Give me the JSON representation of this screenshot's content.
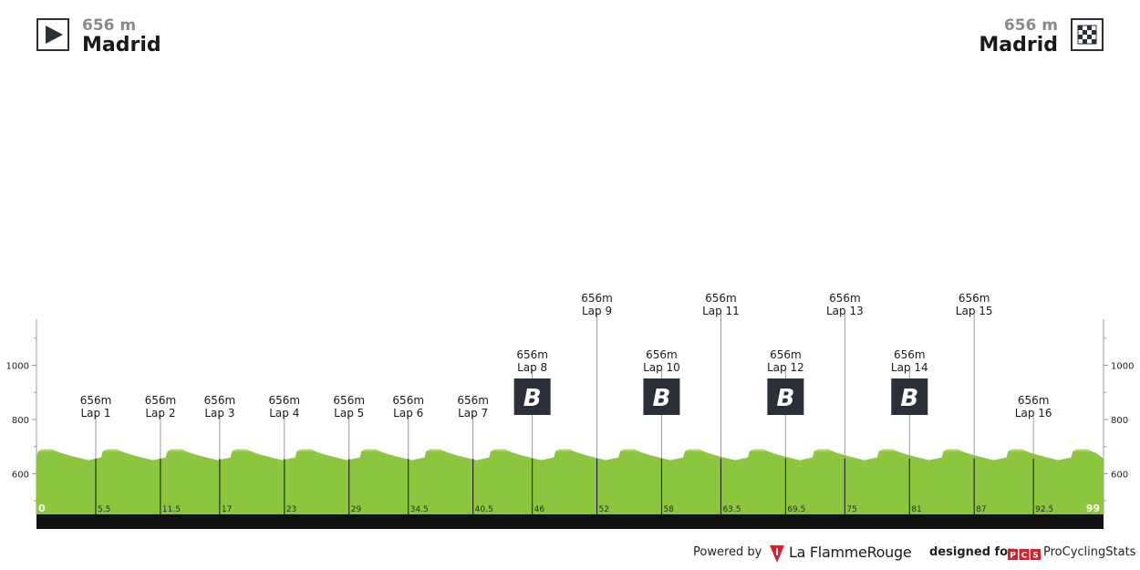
{
  "start": {
    "elevation": "656 m",
    "city": "Madrid",
    "icon": "play-start-icon"
  },
  "finish": {
    "elevation": "656 m",
    "city": "Madrid",
    "icon": "checkered-finish-icon"
  },
  "chart_data": {
    "type": "area",
    "x_unit": "km",
    "y_unit": "m",
    "xlim": [
      0,
      99
    ],
    "ylim": [
      450,
      1170
    ],
    "y_ticks": [
      600,
      800,
      1000
    ],
    "km_markers": [
      {
        "km": 0,
        "label": "0"
      },
      {
        "km": 5.5,
        "label": "5.5"
      },
      {
        "km": 11.5,
        "label": "11.5"
      },
      {
        "km": 17,
        "label": "17"
      },
      {
        "km": 23,
        "label": "23"
      },
      {
        "km": 29,
        "label": "29"
      },
      {
        "km": 34.5,
        "label": "34.5"
      },
      {
        "km": 40.5,
        "label": "40.5"
      },
      {
        "km": 46,
        "label": "46"
      },
      {
        "km": 52,
        "label": "52"
      },
      {
        "km": 58,
        "label": "58"
      },
      {
        "km": 63.5,
        "label": "63.5"
      },
      {
        "km": 69.5,
        "label": "69.5"
      },
      {
        "km": 75,
        "label": "75"
      },
      {
        "km": 81,
        "label": "81"
      },
      {
        "km": 87,
        "label": "87"
      },
      {
        "km": 92.5,
        "label": "92.5"
      },
      {
        "km": 99,
        "label": "99"
      }
    ],
    "elevation_profile_per_lap": {
      "lap_length_km": 6,
      "points": [
        {
          "d": 0,
          "y": 660
        },
        {
          "d": 0.15,
          "y": 683
        },
        {
          "d": 0.5,
          "y": 690
        },
        {
          "d": 1.5,
          "y": 690
        },
        {
          "d": 1.85,
          "y": 683
        },
        {
          "d": 2.3,
          "y": 676
        },
        {
          "d": 3.0,
          "y": 668
        },
        {
          "d": 4.0,
          "y": 658
        },
        {
          "d": 4.8,
          "y": 650
        },
        {
          "d": 5.5,
          "y": 656
        }
      ]
    },
    "laps": [
      {
        "km": 5.5,
        "elevation": "656m",
        "label": "Lap 1",
        "bonus": false,
        "tier": "low"
      },
      {
        "km": 11.5,
        "elevation": "656m",
        "label": "Lap 2",
        "bonus": false,
        "tier": "low"
      },
      {
        "km": 17,
        "elevation": "656m",
        "label": "Lap 3",
        "bonus": false,
        "tier": "low"
      },
      {
        "km": 23,
        "elevation": "656m",
        "label": "Lap 4",
        "bonus": false,
        "tier": "low"
      },
      {
        "km": 29,
        "elevation": "656m",
        "label": "Lap 5",
        "bonus": false,
        "tier": "low"
      },
      {
        "km": 34.5,
        "elevation": "656m",
        "label": "Lap 6",
        "bonus": false,
        "tier": "low"
      },
      {
        "km": 40.5,
        "elevation": "656m",
        "label": "Lap 7",
        "bonus": false,
        "tier": "low"
      },
      {
        "km": 46,
        "elevation": "656m",
        "label": "Lap 8",
        "bonus": true,
        "tier": "mid"
      },
      {
        "km": 52,
        "elevation": "656m",
        "label": "Lap 9",
        "bonus": false,
        "tier": "high"
      },
      {
        "km": 58,
        "elevation": "656m",
        "label": "Lap 10",
        "bonus": true,
        "tier": "mid"
      },
      {
        "km": 63.5,
        "elevation": "656m",
        "label": "Lap 11",
        "bonus": false,
        "tier": "high"
      },
      {
        "km": 69.5,
        "elevation": "656m",
        "label": "Lap 12",
        "bonus": true,
        "tier": "mid"
      },
      {
        "km": 75,
        "elevation": "656m",
        "label": "Lap 13",
        "bonus": false,
        "tier": "high"
      },
      {
        "km": 81,
        "elevation": "656m",
        "label": "Lap 14",
        "bonus": true,
        "tier": "mid"
      },
      {
        "km": 87,
        "elevation": "656m",
        "label": "Lap 15",
        "bonus": false,
        "tier": "high"
      },
      {
        "km": 92.5,
        "elevation": "656m",
        "label": "Lap 16",
        "bonus": false,
        "tier": "low"
      }
    ],
    "bonus_label": "B",
    "colors": {
      "fill": "#8cc63f",
      "fill_light": "#aedb5f",
      "baseline_bar": "#111111",
      "marker_line": "#111111",
      "lap_line": "#9a9a9a",
      "axis": "#9a9a9a",
      "bonus_bg": "#2b2f38",
      "km_label": "#2a2a2a"
    }
  },
  "footer": {
    "powered_by": "Powered by",
    "lfr_name": "La FlammeRouge",
    "designed_for": "designed for",
    "pcs_badge": "PCS",
    "pcs_name": "ProCyclingStats"
  }
}
